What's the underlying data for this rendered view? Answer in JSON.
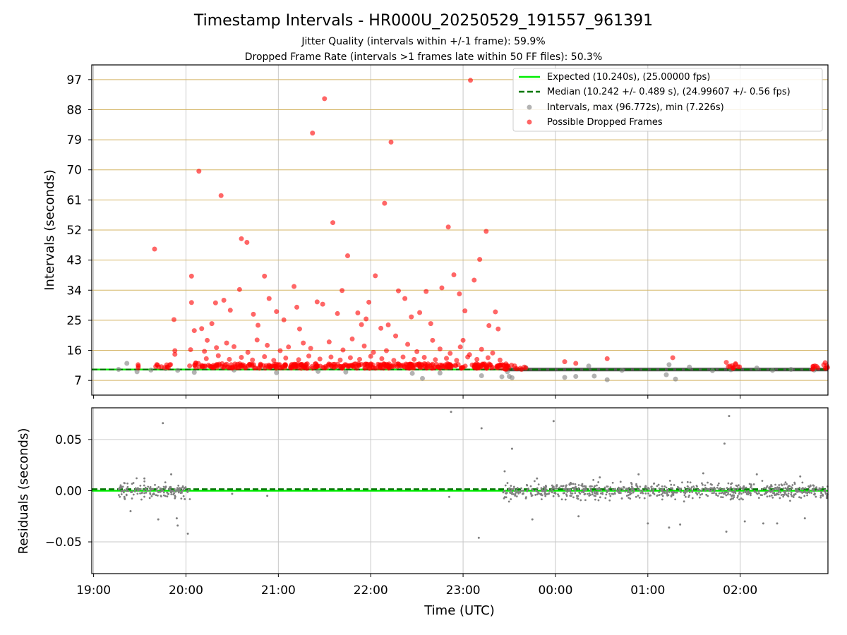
{
  "title": "Timestamp Intervals - HR000U_20250529_191557_961391",
  "subtitle_1": "Jitter Quality (intervals within +/-1 frame): 59.9%",
  "subtitle_2": "Dropped Frame Rate (intervals >1 frames late within 50 FF files): 50.3%",
  "colors": {
    "expected_line": "#00ee00",
    "median_line": "#007700",
    "intervals": "#808080",
    "dropped": "#ff0000",
    "y_grid_top": "#d4b565",
    "grid": "#c8c8c8"
  },
  "legend": {
    "placement": "top-right",
    "expected": "Expected (10.240s), (25.00000 fps)",
    "median": "Median (10.242 +/- 0.489 s), (24.99607 +/- 0.56 fps)",
    "intervals": "Intervals, max (96.772s), min (7.226s)",
    "dropped": "Possible Dropped Frames"
  },
  "chart_data": [
    {
      "type": "scatter",
      "ylabel": "Intervals (seconds)",
      "x_unit": "hours after 19:00 UTC",
      "xlim": [
        -0.02,
        7.95
      ],
      "ylim": [
        2.6,
        101.4
      ],
      "yticks": [
        7,
        16,
        25,
        34,
        43,
        52,
        61,
        70,
        79,
        88,
        97
      ],
      "grid": "y-lines tan, x-lines gray",
      "expected": 10.24,
      "median": 10.242,
      "series": [
        {
          "name": "Intervals, max (96.772s), min (7.226s)",
          "points": [
            [
              0.27,
              10.3
            ],
            [
              0.36,
              12.1
            ],
            [
              0.47,
              9.6
            ],
            [
              0.62,
              10.1
            ],
            [
              0.78,
              10.5
            ],
            [
              0.91,
              10.0
            ],
            [
              1.09,
              9.4
            ],
            [
              1.52,
              10.1
            ],
            [
              1.98,
              9.3
            ],
            [
              2.43,
              9.7
            ],
            [
              2.73,
              9.5
            ],
            [
              3.45,
              9.1
            ],
            [
              3.56,
              7.6
            ],
            [
              3.75,
              9.2
            ],
            [
              4.2,
              8.4
            ],
            [
              4.42,
              8.1
            ],
            [
              4.48,
              9.6
            ],
            [
              4.5,
              8.2
            ],
            [
              4.53,
              7.8
            ],
            [
              4.68,
              10.8
            ],
            [
              5.1,
              7.9
            ],
            [
              5.22,
              8.2
            ],
            [
              5.36,
              11.3
            ],
            [
              5.42,
              8.3
            ],
            [
              5.56,
              7.2
            ],
            [
              5.72,
              10.0
            ],
            [
              6.2,
              8.7
            ],
            [
              6.23,
              11.7
            ],
            [
              6.3,
              7.4
            ],
            [
              6.45,
              11.0
            ],
            [
              6.7,
              9.9
            ],
            [
              6.9,
              10.2
            ],
            [
              7.18,
              10.7
            ],
            [
              7.35,
              10.0
            ],
            [
              7.55,
              10.3
            ],
            [
              7.8,
              10.1
            ]
          ]
        },
        {
          "name": "Possible Dropped Frames",
          "clusters": [
            [
              0.45,
              0.5,
              11.0
            ],
            [
              0.65,
              0.85,
              11.2
            ],
            [
              1.0,
              1.25,
              11.6
            ],
            [
              1.25,
              4.5,
              11.3
            ],
            [
              4.45,
              4.7,
              11.0
            ],
            [
              6.85,
              7.0,
              11.2
            ],
            [
              7.75,
              7.95,
              11.0
            ]
          ],
          "points": [
            [
              0.66,
              46.3
            ],
            [
              0.87,
              25.2
            ],
            [
              0.88,
              15.9
            ],
            [
              0.88,
              14.8
            ],
            [
              1.06,
              38.2
            ],
            [
              1.06,
              30.3
            ],
            [
              1.14,
              69.6
            ],
            [
              1.17,
              22.5
            ],
            [
              1.23,
              19.0
            ],
            [
              1.28,
              24.0
            ],
            [
              1.32,
              30.2
            ],
            [
              1.38,
              62.3
            ],
            [
              1.41,
              31.0
            ],
            [
              1.48,
              28.0
            ],
            [
              1.58,
              34.2
            ],
            [
              1.6,
              49.4
            ],
            [
              1.66,
              48.3
            ],
            [
              1.73,
              26.8
            ],
            [
              1.78,
              23.5
            ],
            [
              1.85,
              38.2
            ],
            [
              1.9,
              31.5
            ],
            [
              1.98,
              27.6
            ],
            [
              2.06,
              25.1
            ],
            [
              2.17,
              35.1
            ],
            [
              2.2,
              28.9
            ],
            [
              2.23,
              22.4
            ],
            [
              2.37,
              81.0
            ],
            [
              2.42,
              30.5
            ],
            [
              2.48,
              29.8
            ],
            [
              2.5,
              91.3
            ],
            [
              2.59,
              54.2
            ],
            [
              2.64,
              27.0
            ],
            [
              2.69,
              33.9
            ],
            [
              2.75,
              44.3
            ],
            [
              2.86,
              27.2
            ],
            [
              2.9,
              23.7
            ],
            [
              2.95,
              25.4
            ],
            [
              2.98,
              30.4
            ],
            [
              3.05,
              38.3
            ],
            [
              3.11,
              22.6
            ],
            [
              3.15,
              60.0
            ],
            [
              3.19,
              23.6
            ],
            [
              3.22,
              78.3
            ],
            [
              3.3,
              33.8
            ],
            [
              3.37,
              31.5
            ],
            [
              3.44,
              26.0
            ],
            [
              3.53,
              27.3
            ],
            [
              3.6,
              33.6
            ],
            [
              3.65,
              24.0
            ],
            [
              3.77,
              34.7
            ],
            [
              3.84,
              52.9
            ],
            [
              3.9,
              38.6
            ],
            [
              3.96,
              32.9
            ],
            [
              4.0,
              19.0
            ],
            [
              4.02,
              27.8
            ],
            [
              4.08,
              96.8
            ],
            [
              4.12,
              37.0
            ],
            [
              4.18,
              43.2
            ],
            [
              4.25,
              51.6
            ],
            [
              4.28,
              23.4
            ],
            [
              4.35,
              27.5
            ],
            [
              4.38,
              22.4
            ],
            [
              1.05,
              16.2
            ],
            [
              1.09,
              21.9
            ],
            [
              1.2,
              15.7
            ],
            [
              1.33,
              16.8
            ],
            [
              1.44,
              18.2
            ],
            [
              1.52,
              17.1
            ],
            [
              1.67,
              15.4
            ],
            [
              1.77,
              19.1
            ],
            [
              1.88,
              17.5
            ],
            [
              2.02,
              15.9
            ],
            [
              2.11,
              17.0
            ],
            [
              2.27,
              18.2
            ],
            [
              2.35,
              16.6
            ],
            [
              2.55,
              18.5
            ],
            [
              2.7,
              16.1
            ],
            [
              2.8,
              19.4
            ],
            [
              2.93,
              17.3
            ],
            [
              3.03,
              15.4
            ],
            [
              3.17,
              15.9
            ],
            [
              3.27,
              20.3
            ],
            [
              3.4,
              17.8
            ],
            [
              3.5,
              15.6
            ],
            [
              3.67,
              19.0
            ],
            [
              3.75,
              16.4
            ],
            [
              3.86,
              15.1
            ],
            [
              3.97,
              17.0
            ],
            [
              4.07,
              14.7
            ],
            [
              4.2,
              16.3
            ],
            [
              4.32,
              15.2
            ],
            [
              1.22,
              13.5
            ],
            [
              1.35,
              14.4
            ],
            [
              1.47,
              13.3
            ],
            [
              1.6,
              13.9
            ],
            [
              1.72,
              13.1
            ],
            [
              1.85,
              14.1
            ],
            [
              1.95,
              13.0
            ],
            [
              2.08,
              13.7
            ],
            [
              2.22,
              13.2
            ],
            [
              2.33,
              14.3
            ],
            [
              2.45,
              13.4
            ],
            [
              2.57,
              14.0
            ],
            [
              2.67,
              13.1
            ],
            [
              2.78,
              13.8
            ],
            [
              2.88,
              13.3
            ],
            [
              3.0,
              14.2
            ],
            [
              3.12,
              13.5
            ],
            [
              3.25,
              13.0
            ],
            [
              3.35,
              14.0
            ],
            [
              3.47,
              13.3
            ],
            [
              3.58,
              13.9
            ],
            [
              3.7,
              13.2
            ],
            [
              3.82,
              13.6
            ],
            [
              3.93,
              13.0
            ],
            [
              4.05,
              14.0
            ],
            [
              4.15,
              13.3
            ],
            [
              4.27,
              13.8
            ],
            [
              4.4,
              13.1
            ],
            [
              5.1,
              12.6
            ],
            [
              5.22,
              12.1
            ],
            [
              5.56,
              13.5
            ],
            [
              6.27,
              13.8
            ],
            [
              6.85,
              12.4
            ],
            [
              6.95,
              12.0
            ],
            [
              7.92,
              12.3
            ]
          ]
        }
      ]
    },
    {
      "type": "scatter",
      "xlabel": "Time (UTC)",
      "ylabel": "Residuals (seconds)",
      "x_unit": "hours after 19:00 UTC",
      "xlim": [
        -0.02,
        7.95
      ],
      "ylim": [
        -0.081,
        0.081
      ],
      "yticks": [
        -0.05,
        0.0,
        0.05
      ],
      "ytick_labels": [
        "−0.05",
        "0.00",
        "0.05"
      ],
      "xticks": [
        0,
        1,
        2,
        3,
        4,
        5,
        6,
        7
      ],
      "xtick_labels": [
        "19:00",
        "20:00",
        "21:00",
        "22:00",
        "23:00",
        "00:00",
        "01:00",
        "02:00"
      ],
      "grid": true,
      "expected": 0.0,
      "median": 0.0015,
      "series": [
        {
          "name": "Intervals, max (96.772s), min (7.226s)",
          "clusters": [
            [
              0.27,
              1.05,
              0.0
            ],
            [
              4.43,
              7.95,
              0.0
            ]
          ],
          "points": [
            [
              0.75,
              0.066
            ],
            [
              0.4,
              -0.02
            ],
            [
              0.55,
              0.012
            ],
            [
              0.7,
              -0.028
            ],
            [
              0.84,
              0.016
            ],
            [
              0.9,
              -0.027
            ],
            [
              0.91,
              -0.034
            ],
            [
              1.02,
              -0.042
            ],
            [
              1.5,
              -0.003
            ],
            [
              1.88,
              -0.005
            ],
            [
              3.87,
              0.077
            ],
            [
              3.85,
              -0.006
            ],
            [
              4.17,
              -0.046
            ],
            [
              4.2,
              0.061
            ],
            [
              4.45,
              0.019
            ],
            [
              4.53,
              0.041
            ],
            [
              4.75,
              -0.028
            ],
            [
              4.8,
              0.012
            ],
            [
              4.98,
              0.068
            ],
            [
              5.25,
              -0.025
            ],
            [
              5.48,
              0.013
            ],
            [
              5.9,
              0.016
            ],
            [
              6.0,
              -0.032
            ],
            [
              6.23,
              -0.036
            ],
            [
              6.35,
              -0.033
            ],
            [
              6.6,
              0.017
            ],
            [
              6.83,
              0.046
            ],
            [
              6.85,
              -0.04
            ],
            [
              6.88,
              0.073
            ],
            [
              7.05,
              -0.03
            ],
            [
              7.18,
              0.016
            ],
            [
              7.25,
              -0.032
            ],
            [
              7.4,
              -0.032
            ],
            [
              7.65,
              0.014
            ],
            [
              7.7,
              -0.027
            ]
          ]
        }
      ]
    }
  ]
}
